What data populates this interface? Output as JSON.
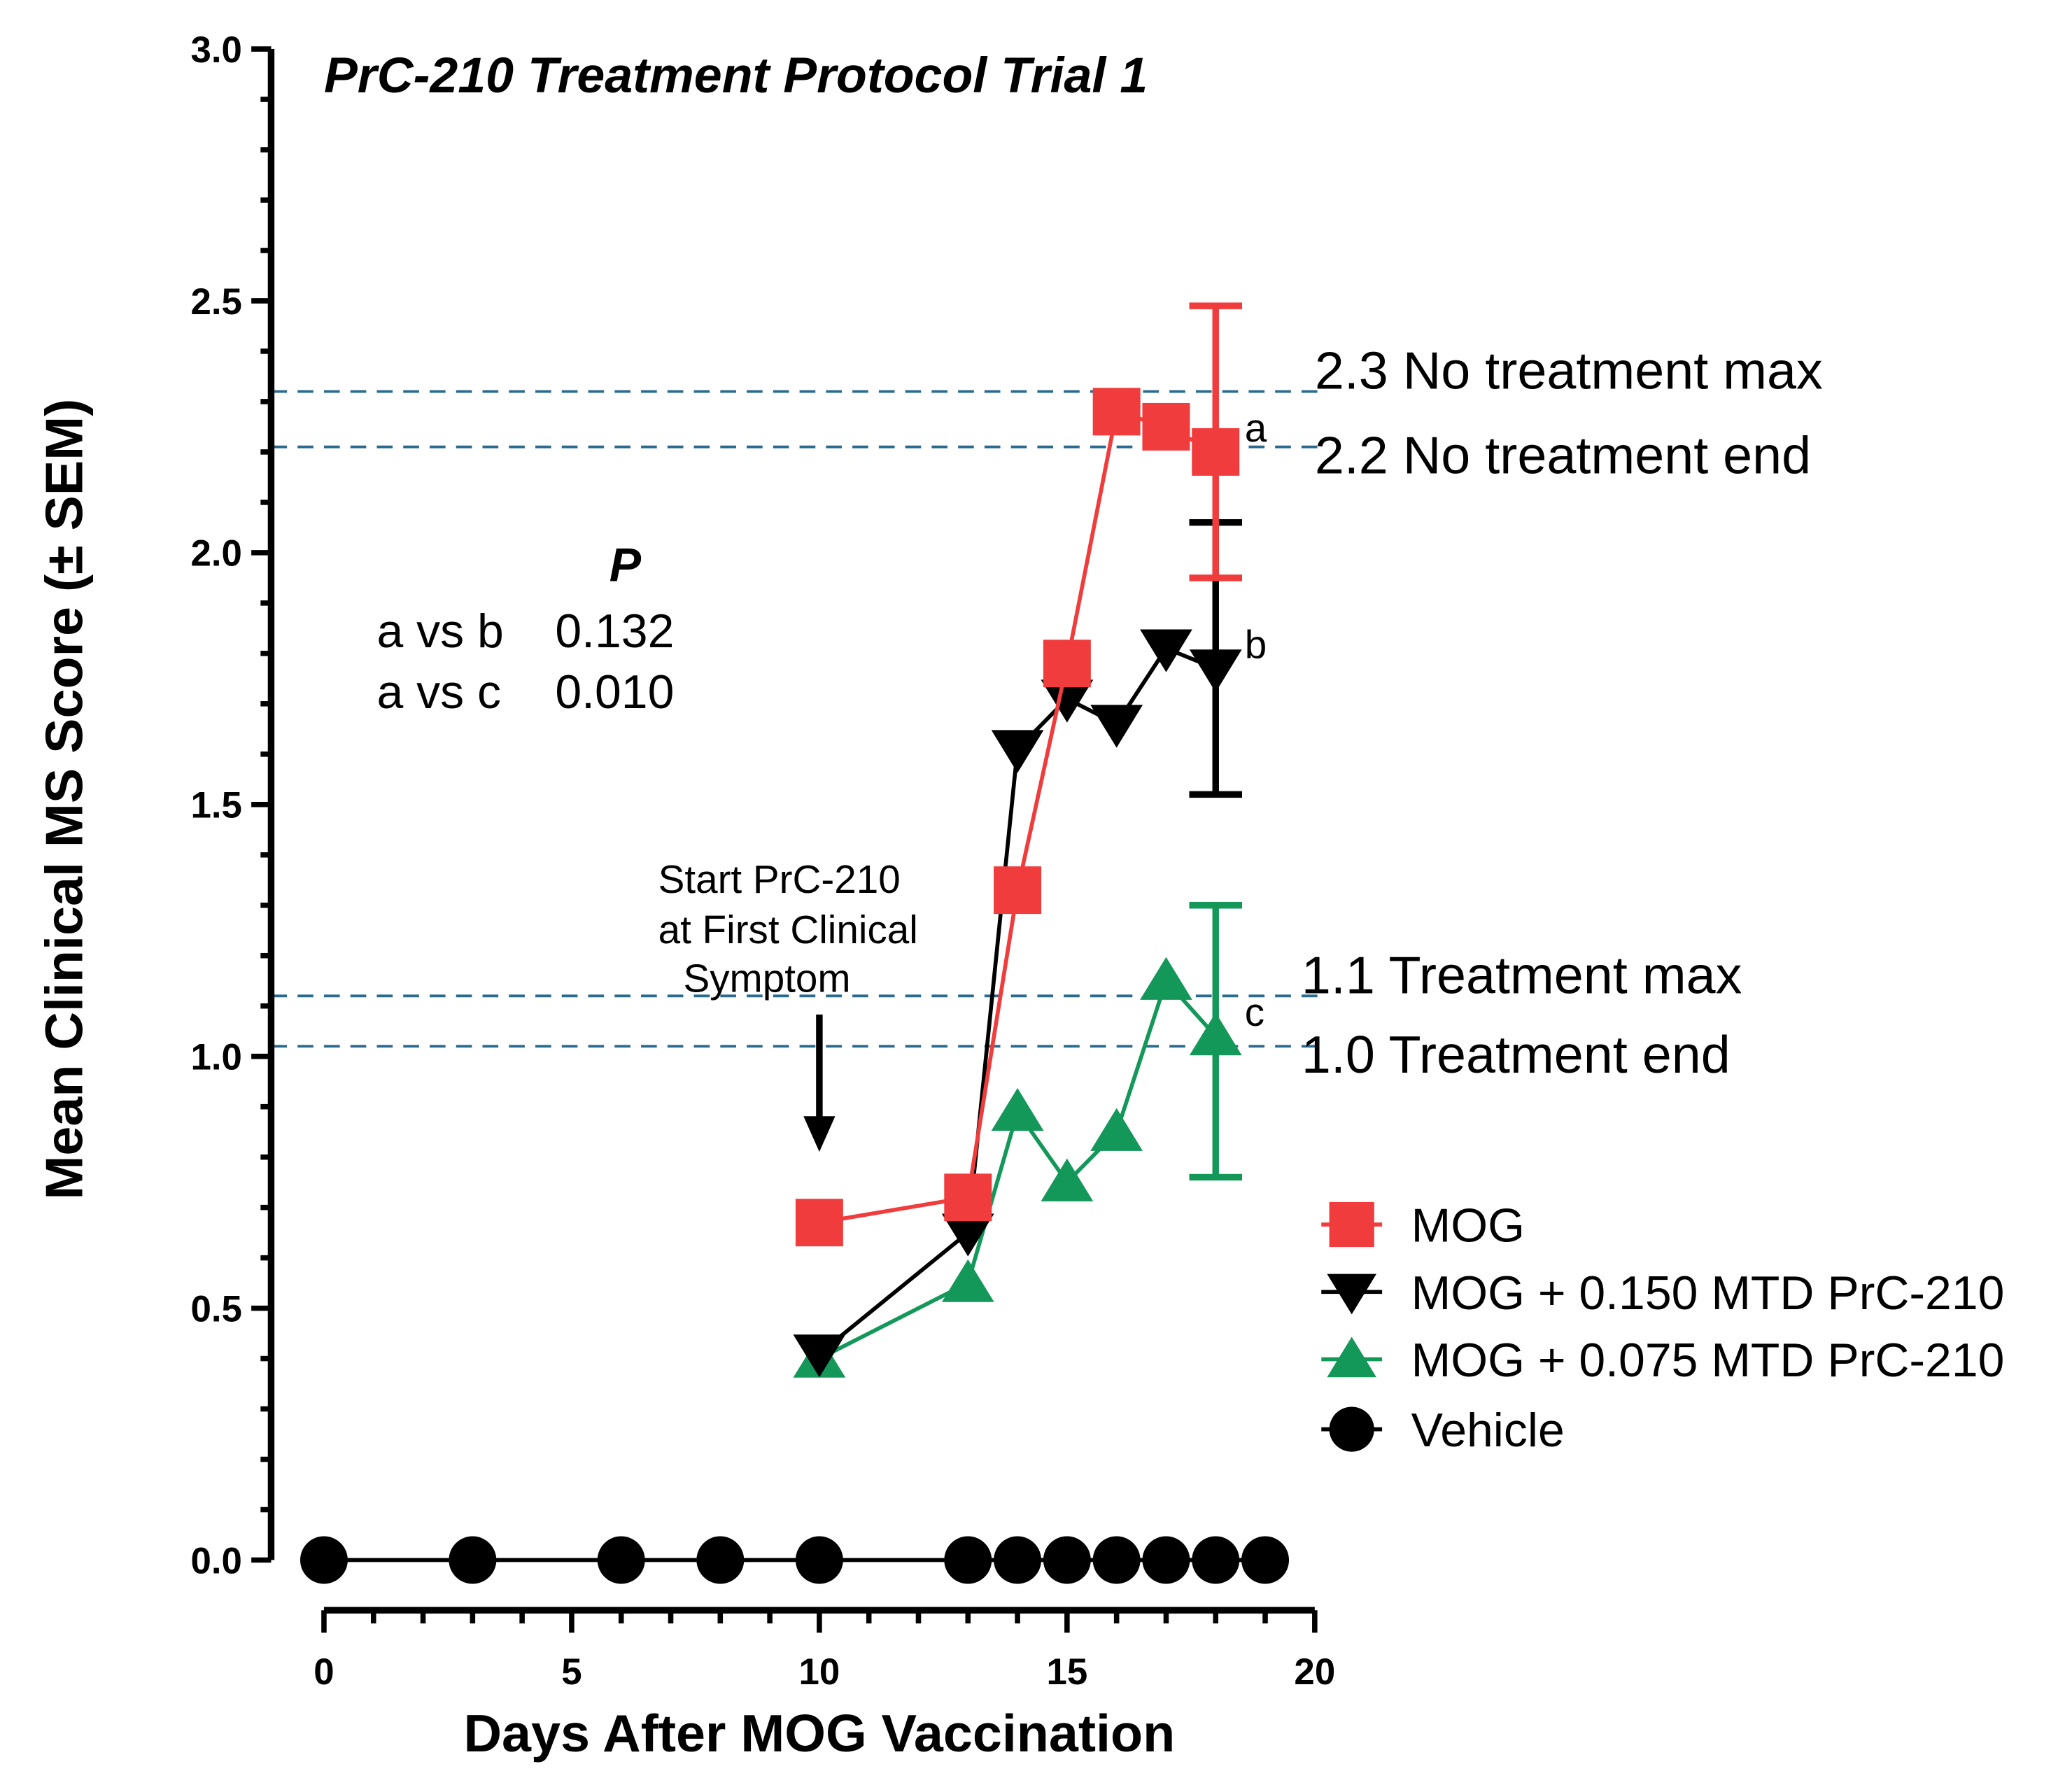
{
  "chart_data": {
    "type": "line",
    "title": "PrC-210 Treatment Protocol Trial 1",
    "xlabel": "Days After MOG Vaccination",
    "ylabel": "Mean Clinical MS Score (± SEM)",
    "xlim": [
      0,
      20
    ],
    "ylim": [
      0,
      3.0
    ],
    "xticks": [
      "0",
      "5",
      "10",
      "15",
      "20"
    ],
    "yticks": [
      "0.0",
      "0.5",
      "1.0",
      "1.5",
      "2.0",
      "2.5",
      "3.0"
    ],
    "legend_position": "right",
    "series": [
      {
        "name": "MOG",
        "color": "#f03c3c",
        "marker": "square",
        "x": [
          10,
          13,
          14,
          15,
          16,
          17,
          18
        ],
        "y": [
          0.67,
          0.72,
          1.33,
          1.78,
          2.28,
          2.25,
          2.2
        ],
        "error": {
          "x": 18,
          "low": 1.95,
          "high": 2.49
        },
        "label": "a"
      },
      {
        "name": "MOG + 0.150 MTD PrC-210",
        "color": "#000000",
        "marker": "triangle-down",
        "x": [
          10,
          13,
          14,
          15,
          16,
          17,
          18
        ],
        "y": [
          0.41,
          0.65,
          1.61,
          1.71,
          1.66,
          1.81,
          1.77
        ],
        "error": {
          "x": 18,
          "low": 1.52,
          "high": 2.06
        },
        "label": "b"
      },
      {
        "name": "MOG + 0.075 MTD PrC-210",
        "color": "#14985a",
        "marker": "triangle-up",
        "x": [
          10,
          13,
          14,
          15,
          16,
          17,
          18
        ],
        "y": [
          0.4,
          0.55,
          0.89,
          0.75,
          0.85,
          1.15,
          1.04
        ],
        "error": {
          "x": 18,
          "low": 0.76,
          "high": 1.3
        },
        "label": "c"
      },
      {
        "name": "Vehicle",
        "color": "#000000",
        "marker": "circle",
        "x": [
          0,
          3,
          6,
          8,
          10,
          13,
          14,
          15,
          16,
          17,
          18,
          19
        ],
        "y": [
          0,
          0,
          0,
          0,
          0,
          0,
          0,
          0,
          0,
          0,
          0,
          0
        ]
      }
    ],
    "reference_lines": [
      {
        "y": 2.32,
        "label": "2.3 No treatment max"
      },
      {
        "y": 2.21,
        "label": "2.2 No treatment end"
      },
      {
        "y": 1.12,
        "label": "1.1 Treatment max"
      },
      {
        "y": 1.02,
        "label": "1.0 Treatment end"
      }
    ],
    "reference_color": "#2a6a8e",
    "pvalues": {
      "header": "P",
      "rows": [
        {
          "label": "a vs b",
          "value": "0.132"
        },
        {
          "label": "a vs c",
          "value": "0.010"
        }
      ]
    },
    "annotation": {
      "lines": [
        "Start PrC-210",
        "at First Clinical",
        "Symptom"
      ],
      "arrow_x": 10
    }
  }
}
